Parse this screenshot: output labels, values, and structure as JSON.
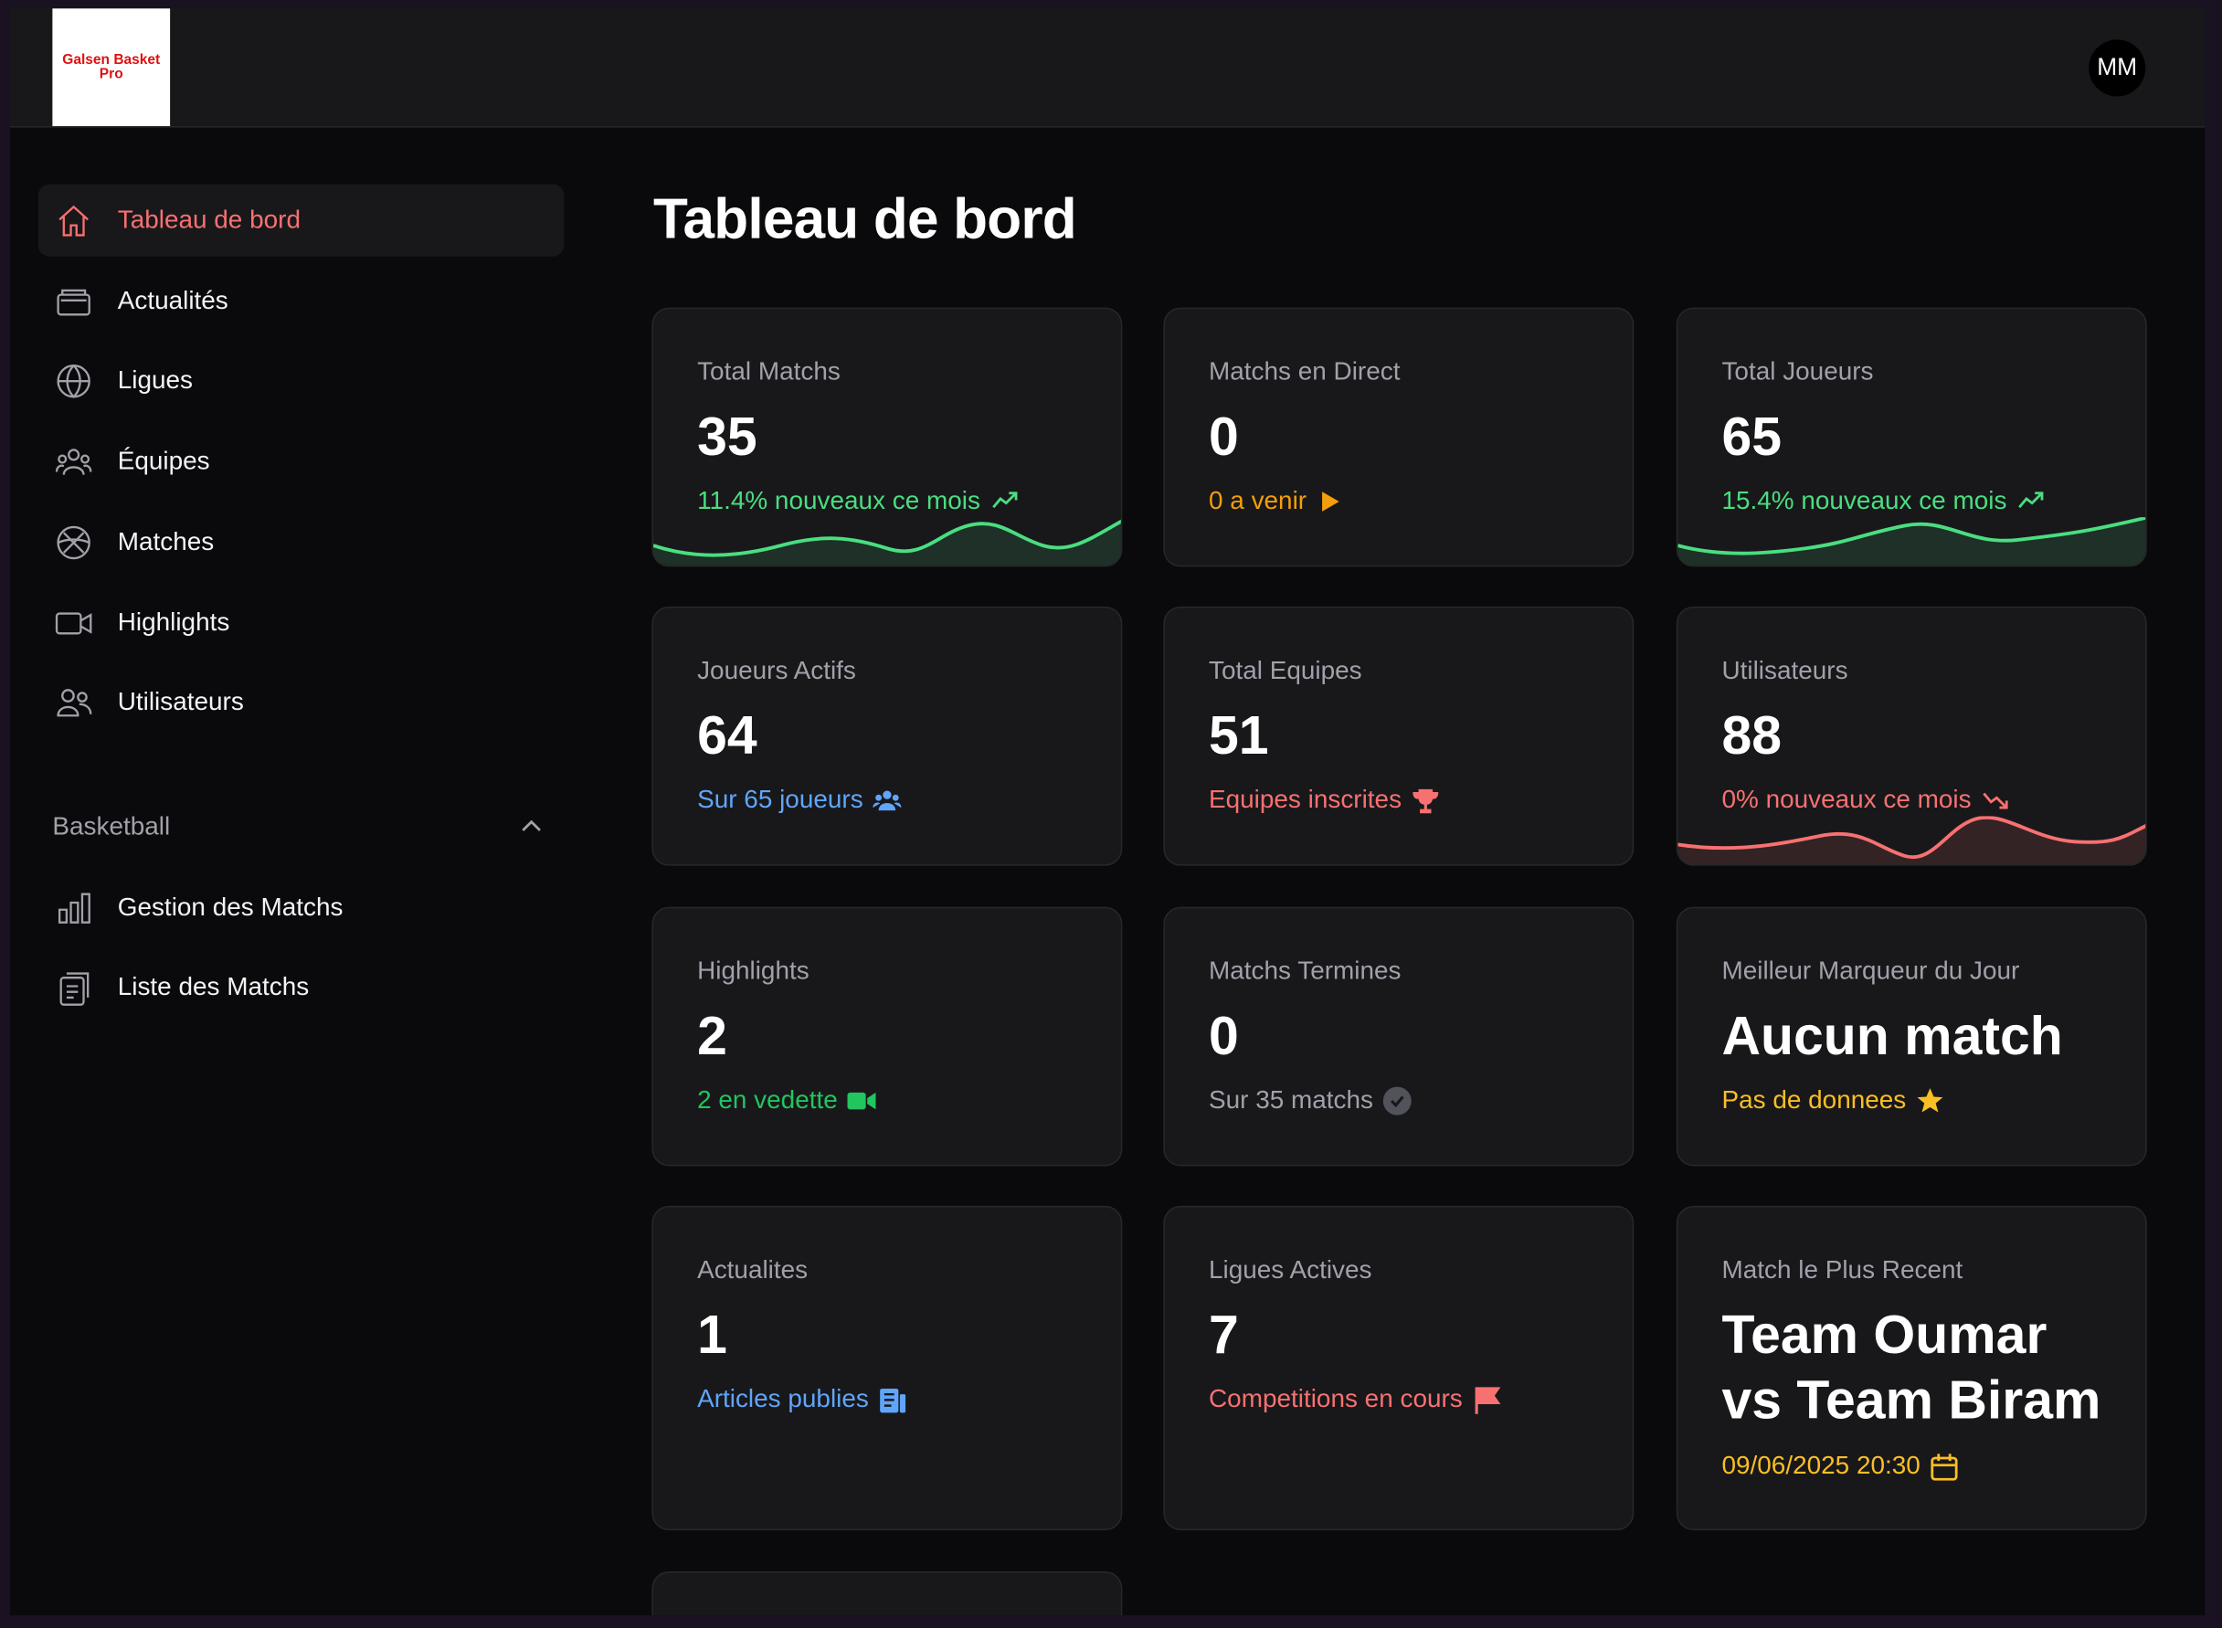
{
  "header": {
    "logo": "Galsen Basket Pro",
    "avatar": "MM"
  },
  "sidebar": {
    "items": [
      "Tableau de bord",
      "Actualités",
      "Ligues",
      "Équipes",
      "Matches",
      "Highlights",
      "Utilisateurs"
    ],
    "section": "Basketball",
    "section_items": [
      "Gestion des Matchs",
      "Liste des Matchs"
    ]
  },
  "page": {
    "title": "Tableau de bord"
  },
  "cards": [
    {
      "label": "Total Matchs",
      "value": "35",
      "note": "11.4% nouveaux ce mois",
      "color": "#4ade80"
    },
    {
      "label": "Matchs en Direct",
      "value": "0",
      "note": "0 a venir",
      "color": "#f59e0b"
    },
    {
      "label": "Total Joueurs",
      "value": "65",
      "note": "15.4% nouveaux ce mois",
      "color": "#4ade80"
    },
    {
      "label": "Joueurs Actifs",
      "value": "64",
      "note": "Sur 65 joueurs",
      "color": "#60a5fa"
    },
    {
      "label": "Total Equipes",
      "value": "51",
      "note": "Equipes inscrites",
      "color": "#f87171"
    },
    {
      "label": "Utilisateurs",
      "value": "88",
      "note": "0% nouveaux ce mois",
      "color": "#f87171"
    },
    {
      "label": "Highlights",
      "value": "2",
      "note": "2 en vedette",
      "color": "#22c55e"
    },
    {
      "label": "Matchs Termines",
      "value": "0",
      "note": "Sur 35 matchs",
      "color": "#a1a1aa"
    },
    {
      "label": "Meilleur Marqueur du Jour",
      "value": "Aucun match",
      "note": "Pas de donnees",
      "color": "#fbbf24"
    },
    {
      "label": "Actualites",
      "value": "1",
      "note": "Articles publies",
      "color": "#60a5fa"
    },
    {
      "label": "Ligues Actives",
      "value": "7",
      "note": "Competitions en cours",
      "color": "#f87171"
    },
    {
      "label": "Match le Plus Recent",
      "value": "Team Oumar vs Team Biram",
      "note": "09/06/2025 20:30",
      "color": "#fbbf24"
    }
  ]
}
